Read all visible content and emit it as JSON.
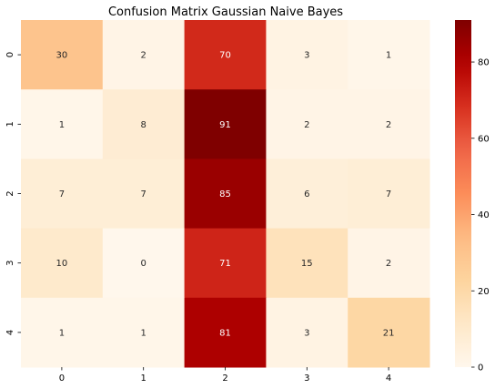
{
  "chart_data": {
    "type": "heatmap",
    "title": "Confusion Matrix Gaussian Naive Bayes",
    "xlabel": "",
    "ylabel": "",
    "x_categories": [
      "0",
      "1",
      "2",
      "3",
      "4"
    ],
    "y_categories": [
      "0",
      "1",
      "2",
      "3",
      "4"
    ],
    "values": [
      [
        30,
        2,
        70,
        3,
        1
      ],
      [
        1,
        8,
        91,
        2,
        2
      ],
      [
        7,
        7,
        85,
        6,
        7
      ],
      [
        10,
        0,
        71,
        15,
        2
      ],
      [
        1,
        1,
        81,
        3,
        21
      ]
    ],
    "colormap": "OrRd",
    "colorbar": {
      "min": 0,
      "max": 91,
      "ticks": [
        "0",
        "20",
        "40",
        "60",
        "80"
      ],
      "tick_values": [
        0,
        20,
        40,
        60,
        80
      ]
    },
    "annotate": true
  }
}
